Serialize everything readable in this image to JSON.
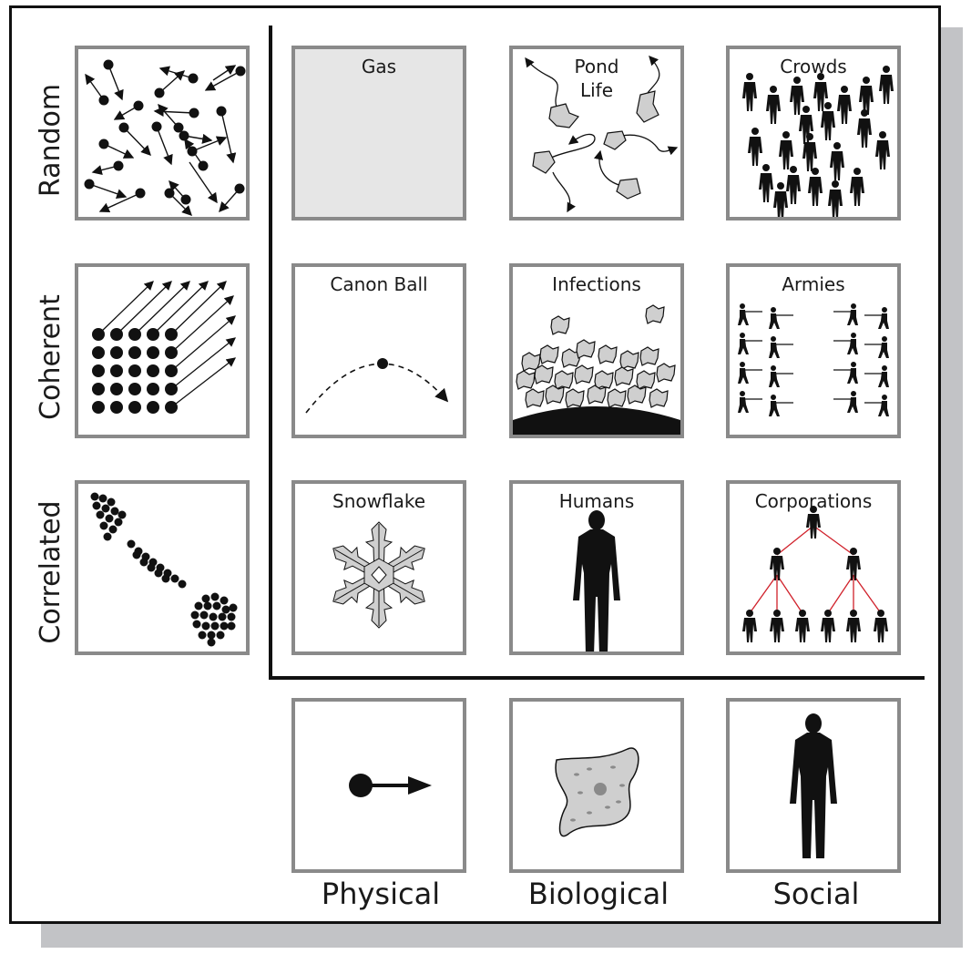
{
  "rows": [
    "Random",
    "Coherent",
    "Correlated"
  ],
  "columns": [
    "Physical",
    "Biological",
    "Social"
  ],
  "cells": {
    "gas": "Gas",
    "pond_life": "Pond\nLife",
    "crowds": "Crowds",
    "canon_ball": "Canon Ball",
    "infections": "Infections",
    "armies": "Armies",
    "snowflake": "Snowflake",
    "humans": "Humans",
    "corporations": "Corporations"
  },
  "colors": {
    "frame": "#111111",
    "box_border": "#8a8a8a",
    "shadow": "#c2c3c6",
    "gas_fill": "#e6e6e6",
    "cell_gray": "#cfcfcf",
    "org_line": "#d0202a"
  },
  "icons": [
    "random-particles-icon",
    "coherent-particles-icon",
    "correlated-particles-icon",
    "pond-life-icon",
    "crowd-icon",
    "cannonball-trajectory-icon",
    "infection-cells-icon",
    "army-soldiers-icon",
    "snowflake-icon",
    "human-silhouette-icon",
    "org-chart-icon",
    "particle-arrow-icon",
    "amoeba-cell-icon",
    "person-icon"
  ]
}
